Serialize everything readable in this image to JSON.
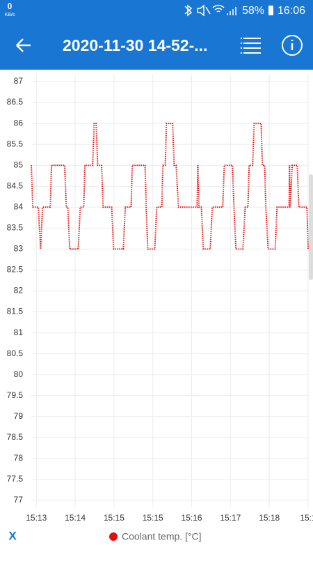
{
  "status_bar": {
    "speed": "0",
    "speed_unit": "KB/s",
    "battery": "58%",
    "time": "16:06"
  },
  "toolbar": {
    "title": "2020-11-30 14-52-..."
  },
  "footer": {
    "x_button": "X"
  },
  "chart_data": {
    "type": "line",
    "series": [
      {
        "name": "Coolant temp. [°C]",
        "color": "#e01010",
        "x": [
          -0.13,
          -0.09,
          0.05,
          0.11,
          0.16,
          0.36,
          0.39,
          0.73,
          0.77,
          0.81,
          0.86,
          1.08,
          1.13,
          1.22,
          1.25,
          1.45,
          1.49,
          1.54,
          1.58,
          1.68,
          1.72,
          1.94,
          1.99,
          2.24,
          2.29,
          2.44,
          2.47,
          2.8,
          2.83,
          2.87,
          3.05,
          3.1,
          3.23,
          3.26,
          3.32,
          3.35,
          3.51,
          3.55,
          3.6,
          3.66,
          4.14,
          4.16,
          4.19,
          4.25,
          4.3,
          4.48,
          4.53,
          4.8,
          4.84,
          5.05,
          5.09,
          5.14,
          5.32,
          5.38,
          5.45,
          5.48,
          5.57,
          5.61,
          5.79,
          5.82,
          5.88,
          5.91,
          5.97,
          6.15,
          6.2,
          6.51,
          6.52,
          6.54,
          6.59,
          6.72,
          6.76,
          6.97,
          7.0
        ],
        "values": [
          85,
          84,
          84,
          83,
          84,
          84,
          85,
          85,
          84,
          84,
          83,
          83,
          84,
          84,
          85,
          85,
          86,
          86,
          85,
          85,
          84,
          84,
          83,
          83,
          84,
          84,
          85,
          85,
          84,
          83,
          83,
          84,
          84,
          85,
          85,
          86,
          86,
          85,
          85,
          84,
          84,
          85,
          84,
          84,
          83,
          83,
          84,
          84,
          85,
          85,
          84,
          83,
          83,
          84,
          84,
          85,
          85,
          86,
          86,
          85,
          85,
          84,
          83,
          83,
          84,
          84,
          85,
          84,
          85,
          85,
          84,
          84,
          83
        ]
      }
    ],
    "xlim": [
      -0.13,
      7.0
    ],
    "xticks": [
      {
        "value": 0,
        "label": "15:13"
      },
      {
        "value": 1,
        "label": "15:14"
      },
      {
        "value": 2,
        "label": "15:15"
      },
      {
        "value": 3,
        "label": "15:15"
      },
      {
        "value": 4,
        "label": "15:16"
      },
      {
        "value": 5,
        "label": "15:17"
      },
      {
        "value": 6,
        "label": "15:18"
      },
      {
        "value": 7,
        "label": "15:1"
      }
    ],
    "ylim": [
      77,
      87
    ],
    "yticks": [
      77,
      77.5,
      78,
      78.5,
      79,
      79.5,
      80,
      80.5,
      81,
      81.5,
      82,
      82.5,
      83,
      83.5,
      84,
      84.5,
      85,
      85.5,
      86,
      86.5,
      87
    ],
    "grid": true,
    "legend": "bottom"
  }
}
